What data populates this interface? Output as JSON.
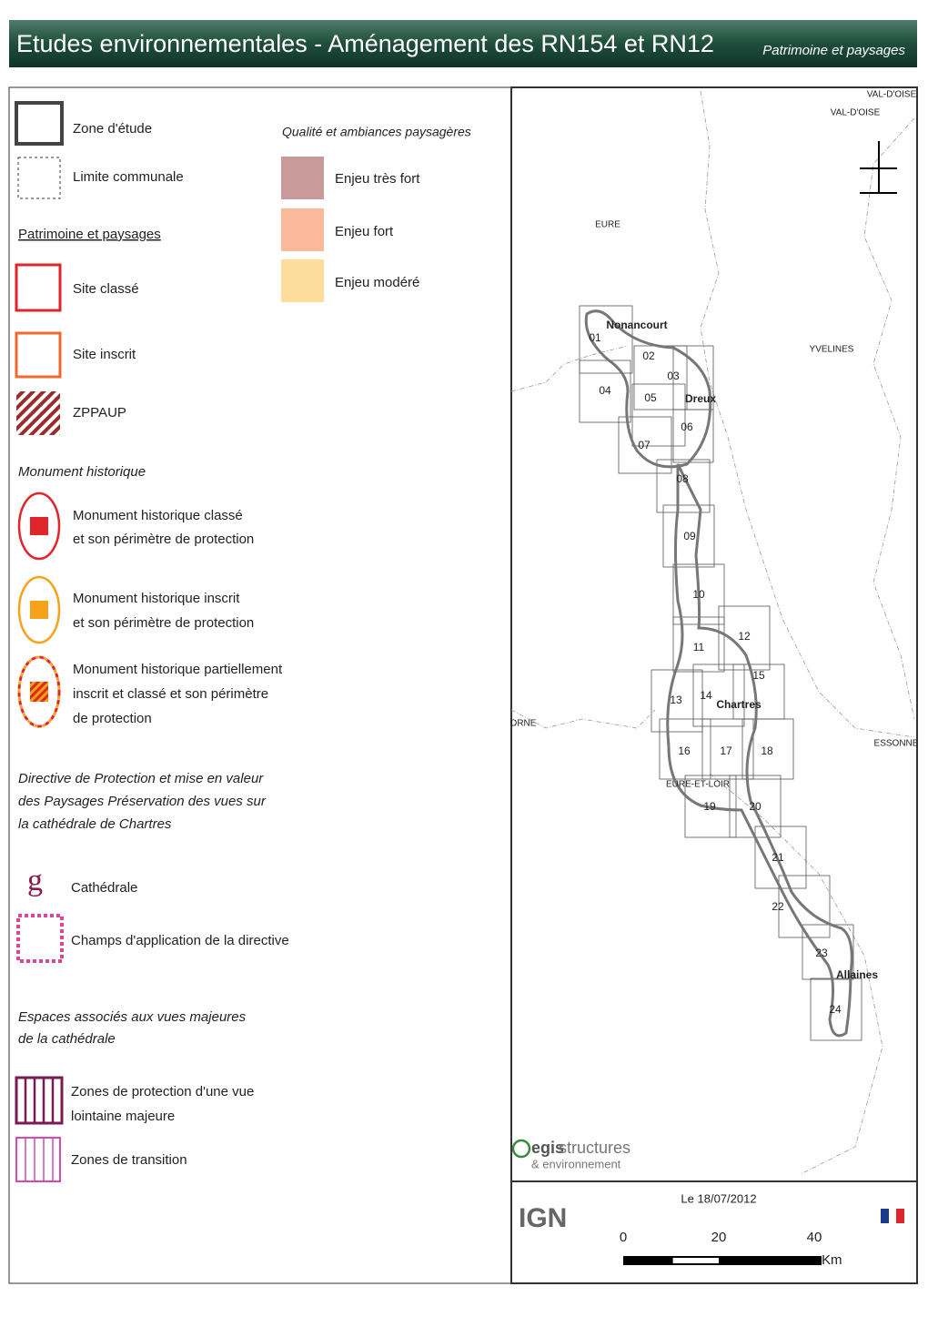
{
  "header": {
    "title": "Etudes environnementales - Aménagement des RN154 et RN12",
    "subtitle": "Patrimoine et paysages"
  },
  "legend": {
    "zone_etude": "Zone d'étude",
    "limite_communale": "Limite communale",
    "quality_heading": "Qualité et ambiances paysagères",
    "enjeu_tres_fort": "Enjeu très fort",
    "enjeu_fort": "Enjeu fort",
    "enjeu_modere": "Enjeu modéré",
    "patrimoine_heading": "Patrimoine et paysages",
    "site_classe": "Site classé",
    "site_inscrit": "Site inscrit",
    "zppaup": "ZPPAUP",
    "monument_heading": "Monument historique",
    "mh_classe": [
      "Monument historique classé",
      "et son périmètre de protection"
    ],
    "mh_inscrit": [
      "Monument historique inscrit",
      "et son périmètre de protection"
    ],
    "mh_partiel": [
      "Monument historique partiellement",
      "inscrit et classé et son périmètre",
      "de protection"
    ],
    "directive_heading": [
      "Directive de Protection et mise en valeur",
      "des Paysages Préservation des vues sur",
      "la cathédrale de Chartres"
    ],
    "cathedrale_symbol": "g",
    "cathedrale": "Cathédrale",
    "champs": "Champs d'application de la directive",
    "espaces_heading": [
      "Espaces associés aux vues majeures",
      "de la cathédrale"
    ],
    "zones_protection": [
      "Zones de protection d'une vue",
      "lointaine majeure"
    ],
    "zones_transition": "Zones de transition"
  },
  "map": {
    "departments": [
      "VAL-D'OISE",
      "VAL-D'OISE",
      "EURE",
      "YVELINES",
      "ORNE",
      "ESSONNE",
      "EURE-ET-LOIR"
    ],
    "towns": [
      "Nonancourt",
      "Dreux",
      "Chartres",
      "Allaines"
    ],
    "tiles": [
      "01",
      "02",
      "03",
      "04",
      "05",
      "06",
      "07",
      "08",
      "09",
      "10",
      "11",
      "12",
      "13",
      "14",
      "15",
      "16",
      "17",
      "18",
      "19",
      "20",
      "21",
      "22",
      "23",
      "24"
    ]
  },
  "footer": {
    "logo": [
      "egis",
      "structures",
      "& environnement"
    ],
    "ign": "IGN",
    "date": "Le 18/07/2012",
    "scale": {
      "ticks": [
        0,
        20,
        40
      ],
      "unit": "Km"
    }
  }
}
